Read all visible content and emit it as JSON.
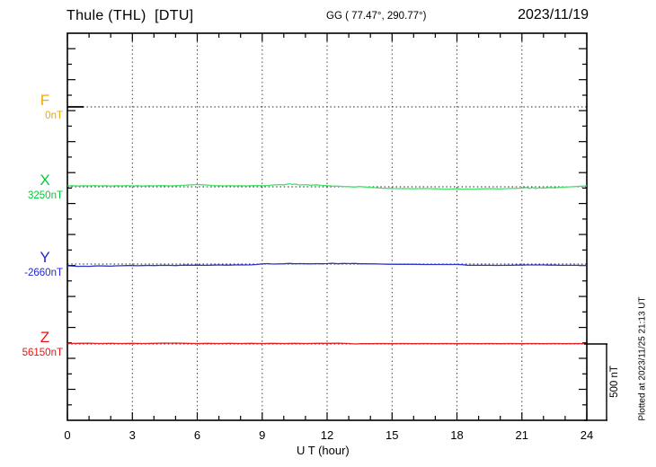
{
  "chart_data": {
    "type": "line",
    "title": "Thule (THL)  [DTU]",
    "subtitle": "GG ( 77.47°, 290.77°)",
    "date": "2023/11/19",
    "xlabel": "U T (hour)",
    "x_range": [
      0,
      24
    ],
    "x_ticks": [
      0,
      3,
      6,
      9,
      12,
      15,
      18,
      21,
      24
    ],
    "x_minor_tick_hours": 1,
    "grid": "dotted vertical every 3 h, dotted horizontal baseline per trace",
    "legend_position": "left margin, one colored letter per trace",
    "scale_bar": {
      "label": "500 nT",
      "nT": 500
    },
    "watermark": "Plotted at 2023/11/25 21:13 UT",
    "series": [
      {
        "name": "F",
        "baseline_label": "0nT",
        "baseline_nT": 0,
        "label_color": "#f5a800",
        "color": "#000000",
        "points": [
          [
            0,
            0
          ],
          [
            0.4,
            0
          ],
          [
            0.75,
            0
          ]
        ]
      },
      {
        "name": "X",
        "baseline_label": "3250nT",
        "baseline_nT": 3250,
        "label_color": "#00cc33",
        "color": "#47e06a",
        "points": [
          [
            0,
            3256
          ],
          [
            0.25,
            3257
          ],
          [
            0.5,
            3255
          ],
          [
            0.75,
            3257
          ],
          [
            1,
            3256
          ],
          [
            1.25,
            3258
          ],
          [
            1.5,
            3256
          ],
          [
            1.75,
            3257
          ],
          [
            2,
            3255
          ],
          [
            2.25,
            3257
          ],
          [
            2.5,
            3256
          ],
          [
            2.75,
            3258
          ],
          [
            3,
            3256
          ],
          [
            3.25,
            3257
          ],
          [
            3.5,
            3255
          ],
          [
            3.75,
            3257
          ],
          [
            4,
            3256
          ],
          [
            4.25,
            3258
          ],
          [
            4.5,
            3257
          ],
          [
            4.75,
            3256
          ],
          [
            5,
            3257
          ],
          [
            5.25,
            3259
          ],
          [
            5.5,
            3261
          ],
          [
            5.75,
            3263
          ],
          [
            6,
            3265
          ],
          [
            6.25,
            3263
          ],
          [
            6.5,
            3261
          ],
          [
            6.75,
            3258
          ],
          [
            7,
            3257
          ],
          [
            7.25,
            3256
          ],
          [
            7.5,
            3257
          ],
          [
            7.75,
            3256
          ],
          [
            8,
            3257
          ],
          [
            8.25,
            3256
          ],
          [
            8.5,
            3257
          ],
          [
            8.75,
            3258
          ],
          [
            9,
            3257
          ],
          [
            9.25,
            3258
          ],
          [
            9.5,
            3262
          ],
          [
            9.75,
            3264
          ],
          [
            10,
            3263
          ],
          [
            10.25,
            3270
          ],
          [
            10.4,
            3265
          ],
          [
            10.5,
            3268
          ],
          [
            10.75,
            3262
          ],
          [
            11,
            3264
          ],
          [
            11.25,
            3260
          ],
          [
            11.5,
            3263
          ],
          [
            11.75,
            3259
          ],
          [
            12,
            3257
          ],
          [
            12.25,
            3255
          ],
          [
            12.5,
            3254
          ],
          [
            12.75,
            3252
          ],
          [
            13,
            3251
          ],
          [
            13.25,
            3248
          ],
          [
            13.5,
            3252
          ],
          [
            13.75,
            3249
          ],
          [
            14,
            3246
          ],
          [
            14.25,
            3244
          ],
          [
            14.5,
            3241
          ],
          [
            14.75,
            3240
          ],
          [
            15,
            3239
          ],
          [
            15.25,
            3238
          ],
          [
            15.5,
            3239
          ],
          [
            15.75,
            3238
          ],
          [
            16,
            3237
          ],
          [
            16.25,
            3238
          ],
          [
            16.5,
            3239
          ],
          [
            16.75,
            3238
          ],
          [
            17,
            3237
          ],
          [
            17.25,
            3236
          ],
          [
            17.5,
            3235
          ],
          [
            17.75,
            3236
          ],
          [
            18,
            3237
          ],
          [
            18.25,
            3235
          ],
          [
            18.5,
            3236
          ],
          [
            18.75,
            3235
          ],
          [
            19,
            3236
          ],
          [
            19.25,
            3237
          ],
          [
            19.5,
            3238
          ],
          [
            19.75,
            3237
          ],
          [
            20,
            3236
          ],
          [
            20.25,
            3238
          ],
          [
            20.5,
            3239
          ],
          [
            20.75,
            3240
          ],
          [
            21,
            3241
          ],
          [
            21.2,
            3246
          ],
          [
            21.35,
            3240
          ],
          [
            21.5,
            3245
          ],
          [
            21.65,
            3238
          ],
          [
            21.8,
            3244
          ],
          [
            22,
            3241
          ],
          [
            22.25,
            3245
          ],
          [
            22.5,
            3243
          ],
          [
            22.75,
            3246
          ],
          [
            23,
            3248
          ],
          [
            23.25,
            3250
          ],
          [
            23.5,
            3252
          ],
          [
            23.75,
            3254
          ],
          [
            24,
            3256
          ]
        ]
      },
      {
        "name": "Y",
        "baseline_label": "-2660nT",
        "baseline_nT": -2660,
        "label_color": "#2222dd",
        "color": "#2b35cc",
        "points": [
          [
            0,
            -2672
          ],
          [
            0.25,
            -2673
          ],
          [
            0.5,
            -2675
          ],
          [
            0.75,
            -2674
          ],
          [
            1,
            -2675
          ],
          [
            1.25,
            -2673
          ],
          [
            1.5,
            -2672
          ],
          [
            1.75,
            -2673
          ],
          [
            2,
            -2674
          ],
          [
            2.25,
            -2672
          ],
          [
            2.5,
            -2671
          ],
          [
            2.75,
            -2670
          ],
          [
            3,
            -2670
          ],
          [
            3.25,
            -2671
          ],
          [
            3.5,
            -2670
          ],
          [
            3.75,
            -2669
          ],
          [
            4,
            -2670
          ],
          [
            4.25,
            -2669
          ],
          [
            4.5,
            -2668
          ],
          [
            4.75,
            -2669
          ],
          [
            5,
            -2670
          ],
          [
            5.25,
            -2668
          ],
          [
            5.5,
            -2667
          ],
          [
            5.75,
            -2668
          ],
          [
            6,
            -2667
          ],
          [
            6.25,
            -2668
          ],
          [
            6.5,
            -2668
          ],
          [
            6.75,
            -2667
          ],
          [
            7,
            -2666
          ],
          [
            7.25,
            -2667
          ],
          [
            7.5,
            -2667
          ],
          [
            7.75,
            -2666
          ],
          [
            8,
            -2665
          ],
          [
            8.25,
            -2666
          ],
          [
            8.5,
            -2665
          ],
          [
            8.75,
            -2663
          ],
          [
            9,
            -2659
          ],
          [
            9.25,
            -2657
          ],
          [
            9.5,
            -2660
          ],
          [
            9.75,
            -2659
          ],
          [
            10,
            -2658
          ],
          [
            10.25,
            -2656
          ],
          [
            10.5,
            -2658
          ],
          [
            10.75,
            -2657
          ],
          [
            11,
            -2658
          ],
          [
            11.25,
            -2659
          ],
          [
            11.5,
            -2657
          ],
          [
            11.75,
            -2658
          ],
          [
            12,
            -2657
          ],
          [
            12.25,
            -2655
          ],
          [
            12.5,
            -2658
          ],
          [
            12.75,
            -2656
          ],
          [
            13,
            -2657
          ],
          [
            13.25,
            -2656
          ],
          [
            13.5,
            -2658
          ],
          [
            13.75,
            -2658
          ],
          [
            14,
            -2659
          ],
          [
            14.25,
            -2659
          ],
          [
            14.5,
            -2660
          ],
          [
            14.75,
            -2661
          ],
          [
            15,
            -2661
          ],
          [
            15.25,
            -2662
          ],
          [
            15.5,
            -2662
          ],
          [
            16,
            -2662
          ],
          [
            16.5,
            -2663
          ],
          [
            17,
            -2663
          ],
          [
            17.5,
            -2663
          ],
          [
            18,
            -2663
          ],
          [
            18.25,
            -2664
          ],
          [
            18.5,
            -2668
          ],
          [
            18.75,
            -2668
          ],
          [
            19,
            -2668
          ],
          [
            19.25,
            -2668
          ],
          [
            19.5,
            -2668
          ],
          [
            19.75,
            -2669
          ],
          [
            20,
            -2669
          ],
          [
            20.25,
            -2668
          ],
          [
            20.5,
            -2668
          ],
          [
            20.75,
            -2667
          ],
          [
            21,
            -2667
          ],
          [
            21.25,
            -2666
          ],
          [
            21.5,
            -2666
          ],
          [
            21.75,
            -2666
          ],
          [
            22,
            -2666
          ],
          [
            22.25,
            -2667
          ],
          [
            22.5,
            -2667
          ],
          [
            22.75,
            -2668
          ],
          [
            23,
            -2668
          ],
          [
            23.25,
            -2668
          ],
          [
            23.5,
            -2668
          ],
          [
            23.75,
            -2669
          ],
          [
            24,
            -2669
          ]
        ]
      },
      {
        "name": "Z",
        "baseline_label": "56150nT",
        "baseline_nT": 56150,
        "label_color": "#ee1111",
        "color": "#e02222",
        "points": [
          [
            0,
            56153
          ],
          [
            0.5,
            56154
          ],
          [
            1,
            56155
          ],
          [
            1.5,
            56153
          ],
          [
            2,
            56154
          ],
          [
            2.5,
            56153
          ],
          [
            3,
            56154
          ],
          [
            3.5,
            56153
          ],
          [
            4,
            56154
          ],
          [
            4.5,
            56156
          ],
          [
            4.75,
            56155
          ],
          [
            5,
            56156
          ],
          [
            5.5,
            56154
          ],
          [
            6,
            56153
          ],
          [
            6.5,
            56154
          ],
          [
            7,
            56153
          ],
          [
            7.5,
            56154
          ],
          [
            8,
            56153
          ],
          [
            8.5,
            56154
          ],
          [
            9,
            56153
          ],
          [
            9.5,
            56154
          ],
          [
            10,
            56153
          ],
          [
            10.5,
            56154
          ],
          [
            11,
            56153
          ],
          [
            11.5,
            56154
          ],
          [
            12,
            56154
          ],
          [
            12.5,
            56155
          ],
          [
            13,
            56153
          ],
          [
            13.3,
            56150
          ],
          [
            13.6,
            56152
          ],
          [
            14,
            56152
          ],
          [
            14.5,
            56153
          ],
          [
            15,
            56152
          ],
          [
            15.5,
            56153
          ],
          [
            16,
            56152
          ],
          [
            16.5,
            56153
          ],
          [
            17,
            56152
          ],
          [
            17.5,
            56153
          ],
          [
            18,
            56152
          ],
          [
            18.5,
            56153
          ],
          [
            19,
            56152
          ],
          [
            19.5,
            56153
          ],
          [
            20,
            56152
          ],
          [
            20.5,
            56153
          ],
          [
            21,
            56152
          ],
          [
            21.5,
            56153
          ],
          [
            22,
            56152
          ],
          [
            22.5,
            56153
          ],
          [
            23,
            56152
          ],
          [
            23.5,
            56153
          ],
          [
            24,
            56152
          ]
        ]
      }
    ]
  }
}
